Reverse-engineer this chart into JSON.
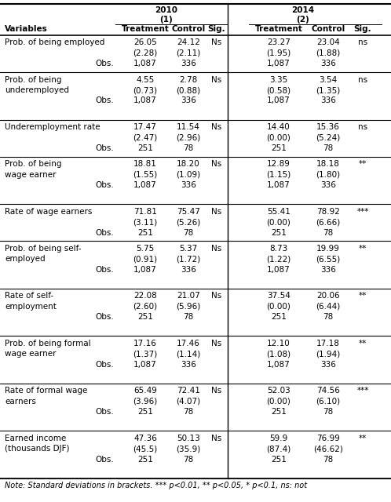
{
  "rows": [
    {
      "var": [
        "Prob. of being employed"
      ],
      "t10": "26.05",
      "sd_t10": "(2.28)",
      "obs_t10": "1,087",
      "c10": "24.12",
      "sd_c10": "(2.11)",
      "obs_c10": "336",
      "sig10": "Ns",
      "t14": "23.27",
      "sd_t14": "(1.95)",
      "obs_t14": "1,087",
      "c14": "23.04",
      "sd_c14": "(1.88)",
      "obs_c14": "336",
      "sig14": "ns"
    },
    {
      "var": [
        "Prob. of being",
        "underemployed"
      ],
      "t10": "4.55",
      "sd_t10": "(0.73)",
      "obs_t10": "1,087",
      "c10": "2.78",
      "sd_c10": "(0.88)",
      "obs_c10": "336",
      "sig10": "Ns",
      "t14": "3.35",
      "sd_t14": "(0.58)",
      "obs_t14": "1,087",
      "c14": "3.54",
      "sd_c14": "(1.35)",
      "obs_c14": "336",
      "sig14": "ns"
    },
    {
      "var": [
        "Underemployment rate"
      ],
      "t10": "17.47",
      "sd_t10": "(2.47)",
      "obs_t10": "251",
      "c10": "11.54",
      "sd_c10": "(2.96)",
      "obs_c10": "78",
      "sig10": "Ns",
      "t14": "14.40",
      "sd_t14": "(0.00)",
      "obs_t14": "251",
      "c14": "15.36",
      "sd_c14": "(5.24)",
      "obs_c14": "78",
      "sig14": "ns"
    },
    {
      "var": [
        "Prob. of being",
        "wage earner"
      ],
      "t10": "18.81",
      "sd_t10": "(1.55)",
      "obs_t10": "1,087",
      "c10": "18.20",
      "sd_c10": "(1.09)",
      "obs_c10": "336",
      "sig10": "Ns",
      "t14": "12.89",
      "sd_t14": "(1.15)",
      "obs_t14": "1,087",
      "c14": "18.18",
      "sd_c14": "(1.80)",
      "obs_c14": "336",
      "sig14": "**"
    },
    {
      "var": [
        "Rate of wage earners"
      ],
      "t10": "71.81",
      "sd_t10": "(3.11)",
      "obs_t10": "251",
      "c10": "75.47",
      "sd_c10": "(5.26)",
      "obs_c10": "78",
      "sig10": "Ns",
      "t14": "55.41",
      "sd_t14": "(0.00)",
      "obs_t14": "251",
      "c14": "78.92",
      "sd_c14": "(6.66)",
      "obs_c14": "78",
      "sig14": "***"
    },
    {
      "var": [
        "Prob. of being self-",
        "employed"
      ],
      "t10": "5.75",
      "sd_t10": "(0.91)",
      "obs_t10": "1,087",
      "c10": "5.37",
      "sd_c10": "(1.72)",
      "obs_c10": "336",
      "sig10": "Ns",
      "t14": "8.73",
      "sd_t14": "(1.22)",
      "obs_t14": "1,087",
      "c14": "19.99",
      "sd_c14": "(6.55)",
      "obs_c14": "336",
      "sig14": "**"
    },
    {
      "var": [
        "Rate of self-",
        "employment"
      ],
      "t10": "22.08",
      "sd_t10": "(2.60)",
      "obs_t10": "251",
      "c10": "21.07",
      "sd_c10": "(5.96)",
      "obs_c10": "78",
      "sig10": "Ns",
      "t14": "37.54",
      "sd_t14": "(0.00)",
      "obs_t14": "251",
      "c14": "20.06",
      "sd_c14": "(6.44)",
      "obs_c14": "78",
      "sig14": "**"
    },
    {
      "var": [
        "Prob. of being formal",
        "wage earner"
      ],
      "t10": "17.16",
      "sd_t10": "(1.37)",
      "obs_t10": "1,087",
      "c10": "17.46",
      "sd_c10": "(1.14)",
      "obs_c10": "336",
      "sig10": "Ns",
      "t14": "12.10",
      "sd_t14": "(1.08)",
      "obs_t14": "1,087",
      "c14": "17.18",
      "sd_c14": "(1.94)",
      "obs_c14": "336",
      "sig14": "**"
    },
    {
      "var": [
        "Rate of formal wage",
        "earners"
      ],
      "t10": "65.49",
      "sd_t10": "(3.96)",
      "obs_t10": "251",
      "c10": "72.41",
      "sd_c10": "(4.07)",
      "obs_c10": "78",
      "sig10": "Ns",
      "t14": "52.03",
      "sd_t14": "(0.00)",
      "obs_t14": "251",
      "c14": "74.56",
      "sd_c14": "(6.10)",
      "obs_c14": "78",
      "sig14": "***"
    },
    {
      "var": [
        "Earned income",
        "(thousands DJF)"
      ],
      "t10": "47.36",
      "sd_t10": "(45.5)",
      "obs_t10": "251",
      "c10": "50.13",
      "sd_c10": "(35.9)",
      "obs_c10": "78",
      "sig10": "Ns",
      "t14": "59.9",
      "sd_t14": "(87.4)",
      "obs_t14": "251",
      "c14": "76.99",
      "sd_c14": "(46.62)",
      "obs_c14": "78",
      "sig14": "**"
    }
  ],
  "note": "Note: Standard deviations in brackets. *** p<0.01, ** p<0.05, * p<0.1, ns: not",
  "bg_color": "#FFFFFF",
  "font_size": 7.5
}
